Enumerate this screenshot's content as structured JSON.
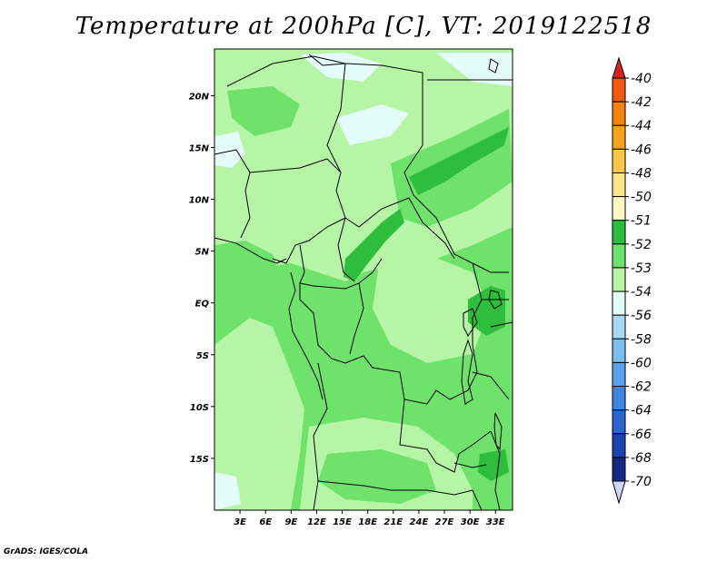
{
  "map": {
    "title": "Temperature at 200hPa [C], VT: 2019122518",
    "lat_labels": [
      "20N",
      "15N",
      "10N",
      "5N",
      "EQ",
      "5S",
      "10S",
      "15S"
    ],
    "lon_labels": [
      "3E",
      "6E",
      "9E",
      "12E",
      "15E",
      "18E",
      "21E",
      "24E",
      "27E",
      "30E",
      "33E"
    ],
    "extent": {
      "lon_min": 0,
      "lon_max": 35,
      "lat_min": -20,
      "lat_max": 24.5
    }
  },
  "colorbar": {
    "labels": [
      "-40",
      "-42",
      "-44",
      "-46",
      "-48",
      "-50",
      "-51",
      "-52",
      "-53",
      "-54",
      "-56",
      "-58",
      "-60",
      "-62",
      "-64",
      "-66",
      "-68",
      "-70"
    ],
    "colors": [
      "#e8301a",
      "#f05a0f",
      "#f5820c",
      "#f7a21e",
      "#fbc84a",
      "#fde38a",
      "#fcf9c3",
      "#2fbd3e",
      "#6ee26a",
      "#b6f5a6",
      "#e3fbf9",
      "#a8d8f6",
      "#7cc0f0",
      "#5aa2e8",
      "#3f86e0",
      "#2a64cc",
      "#1b46b0",
      "#15287f",
      "#0a0a5a"
    ],
    "top_arrow_color": "#d8231c",
    "bottom_arrow_color": "#d3d3f5"
  },
  "footer": "GrADS: IGES/COLA"
}
